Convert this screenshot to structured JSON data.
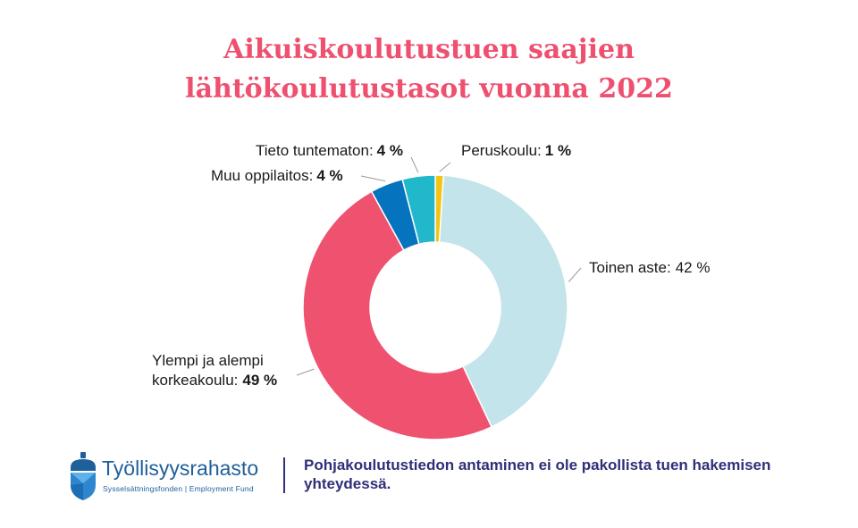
{
  "chart_data": {
    "type": "pie",
    "variant": "donut",
    "title_lines": [
      "Aikuiskoulutustuen saajien",
      "lähtökoulutustasot vuonna 2022"
    ],
    "slices": [
      {
        "label": "Peruskoulu:",
        "value": 1,
        "value_text": "1 %",
        "color": "#f2c418"
      },
      {
        "label": "Toinen aste:",
        "value": 42,
        "value_text": "42 %",
        "color": "#c3e4ea"
      },
      {
        "label": "Ylempi ja alempi korkeakoulu:",
        "label_lines": [
          "Ylempi ja alempi",
          "korkeakoulu:"
        ],
        "value": 49,
        "value_text": "49 %",
        "color": "#ef526f"
      },
      {
        "label": "Muu oppilaitos:",
        "value": 4,
        "value_text": "4 %",
        "color": "#0573bd"
      },
      {
        "label": "Tieto tuntematon:",
        "value": 4,
        "value_text": "4 %",
        "color": "#22b8cb"
      }
    ]
  },
  "footer": {
    "brand_name": "Työllisyysrahasto",
    "brand_sub": "Sysselsättningsfonden | Employment Fund",
    "note": "Pohjakoulutustiedon antaminen ei ole pakollista tuen hakemisen yhteydessä."
  },
  "colors": {
    "title": "#ee5070",
    "note": "#2f2f7a",
    "brand": "#1f5f9a"
  },
  "icons": {
    "logo": "acorn-icon"
  }
}
